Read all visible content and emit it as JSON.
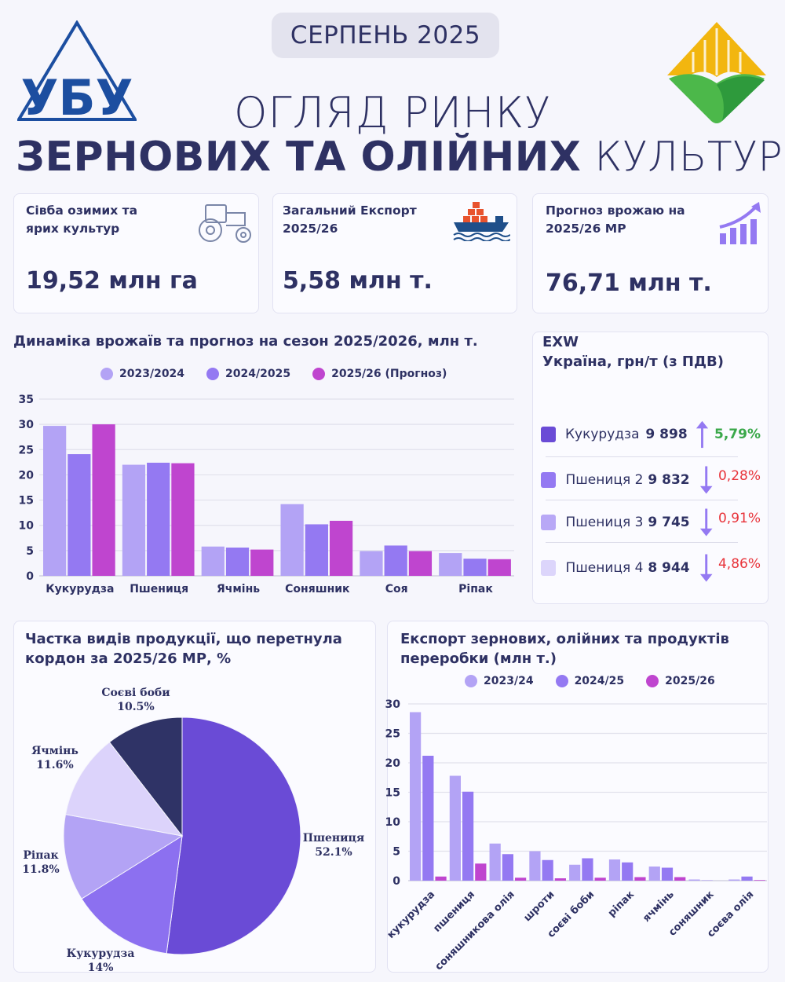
{
  "header": {
    "date_badge": "СЕРПЕНЬ 2025",
    "title_line1": "ОГЛЯД РИНКУ",
    "title_bold": "ЗЕРНОВИХ ТА ОЛІЙНИХ",
    "title_light": "КУЛЬТУР",
    "left_logo_text": "УБУ"
  },
  "colors": {
    "text": "#2e3163",
    "s2023": "#b3a3f5",
    "s2024": "#9479f2",
    "s2025": "#bf45cf",
    "up": "#3aa84a",
    "down": "#e8333a",
    "arrow": "#9479f2"
  },
  "cards": [
    {
      "title": "Сівба озимих та ярих культур",
      "value": "19,52 млн га",
      "icon": "tractor-icon"
    },
    {
      "title": "Загальний Експорт 2025/26",
      "value": "5,58 млн т.",
      "icon": "cargo-ship-icon"
    },
    {
      "title": "Прогноз врожаю на 2025/26 МР",
      "value": "76,71 млн т.",
      "icon": "growth-chart-icon"
    }
  ],
  "exw": {
    "title_line1": "EXW",
    "title_line2": "Україна, грн/т (з ПДВ)",
    "rows": [
      {
        "name": "Кукурудза",
        "price": "9 898",
        "direction": "up",
        "change": "5,79%",
        "color": "#6a4bd6"
      },
      {
        "name": "Пшениця 2",
        "price": "9 832",
        "direction": "down",
        "change": "0,28%",
        "color": "#9479f2"
      },
      {
        "name": "Пшениця 3",
        "price": "9 745",
        "direction": "down",
        "change": "0,91%",
        "color": "#b8a8f6"
      },
      {
        "name": "Пшениця 4",
        "price": "8 944",
        "direction": "down",
        "change": "4,86%",
        "color": "#dcd5fb"
      }
    ]
  },
  "chart_data": [
    {
      "type": "bar",
      "title": "Динаміка врожаїв та прогноз на сезон 2025/2026, млн т.",
      "categories": [
        "Кукурудза",
        "Пшениця",
        "Ячмінь",
        "Соняшник",
        "Соя",
        "Ріпак"
      ],
      "series": [
        {
          "name": "2023/2024",
          "color": "#b3a3f5",
          "values": [
            29.7,
            22.0,
            5.8,
            14.2,
            4.9,
            4.5
          ]
        },
        {
          "name": "2024/2025",
          "color": "#9479f2",
          "values": [
            24.1,
            22.4,
            5.6,
            10.2,
            6.0,
            3.4
          ]
        },
        {
          "name": "2025/26 (Прогноз)",
          "color": "#bf45cf",
          "values": [
            30.0,
            22.3,
            5.2,
            10.9,
            4.9,
            3.3
          ]
        }
      ],
      "yticks": [
        0,
        5,
        10,
        15,
        20,
        25,
        30,
        35
      ],
      "ylim": [
        0,
        35
      ],
      "grid": true,
      "legend": "top"
    },
    {
      "type": "pie",
      "title": "Частка видів продукції, що перетнула кордон за 2025/26 МР, %",
      "slices": [
        {
          "label": "Пшениця",
          "value": 52.1,
          "text": "52.1%",
          "color": "#6a4bd6"
        },
        {
          "label": "Кукурудза",
          "value": 14,
          "text": "14%",
          "color": "#8c70f0"
        },
        {
          "label": "Ріпак",
          "value": 11.8,
          "text": "11.8%",
          "color": "#b3a3f5"
        },
        {
          "label": "Ячмінь",
          "value": 11.6,
          "text": "11.6%",
          "color": "#dcd3fb"
        },
        {
          "label": "Соєві боби",
          "value": 10.5,
          "text": "10.5%",
          "color": "#2f3366"
        }
      ]
    },
    {
      "type": "bar",
      "title": "Експорт зернових, олійних та продуктів переробки (млн т.)",
      "categories": [
        "кукурудза",
        "пшениця",
        "соняшникова олія",
        "шроти",
        "соєві боби",
        "ріпак",
        "ячмінь",
        "соняшник",
        "соєва олія"
      ],
      "series": [
        {
          "name": "2023/24",
          "color": "#b3a3f5",
          "values": [
            28.6,
            17.8,
            6.3,
            5.0,
            2.7,
            3.6,
            2.4,
            0.2,
            0.2
          ]
        },
        {
          "name": "2024/25",
          "color": "#9479f2",
          "values": [
            21.2,
            15.1,
            4.5,
            3.5,
            3.8,
            3.1,
            2.2,
            0.05,
            0.7
          ]
        },
        {
          "name": "2025/26",
          "color": "#bf45cf",
          "values": [
            0.7,
            2.9,
            0.5,
            0.4,
            0.5,
            0.6,
            0.6,
            0.0,
            0.1
          ]
        }
      ],
      "yticks": [
        0,
        5,
        10,
        15,
        20,
        25,
        30
      ],
      "ylim": [
        0,
        30
      ],
      "grid": true,
      "legend": "top"
    }
  ]
}
